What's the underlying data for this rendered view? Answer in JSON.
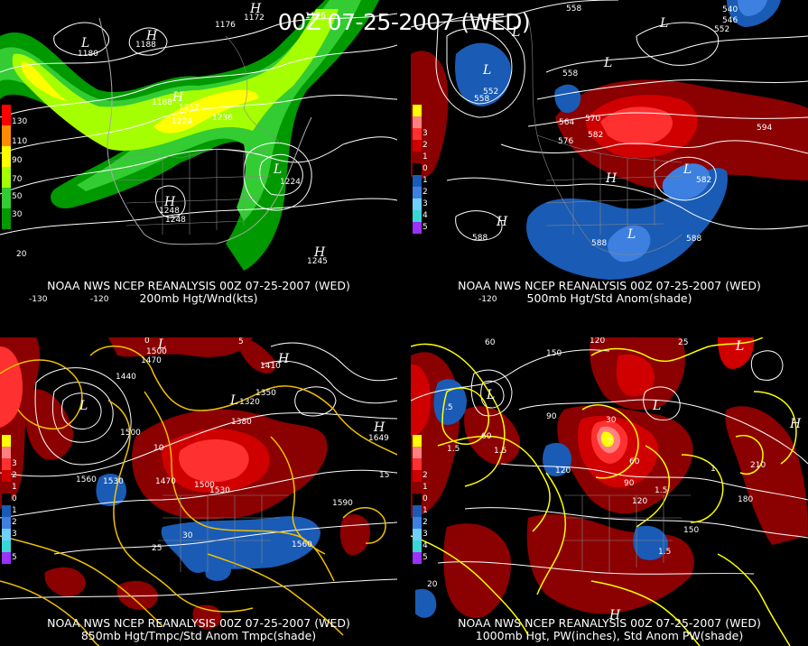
{
  "title": "00Z 07-25-2007 (WED)",
  "panels": [
    {
      "caption_line1": "NOAA NWS NCEP REANALYSIS 00Z 07-25-2007 (WED)",
      "caption_line2": "200mb Hgt/Wnd(kts)",
      "colorbar": [
        {
          "label": "130",
          "color": "#ff0000"
        },
        {
          "label": "110",
          "color": "#ff8c00"
        },
        {
          "label": "90",
          "color": "#ffff00"
        },
        {
          "label": "70",
          "color": "#a6ff00"
        },
        {
          "label": "50",
          "color": "#33cc33"
        },
        {
          "label": "30",
          "color": "#009900"
        }
      ],
      "contour_labels": [
        {
          "text": "1172"
        },
        {
          "text": "1176"
        },
        {
          "text": "1176"
        },
        {
          "text": "1180"
        },
        {
          "text": "1188"
        },
        {
          "text": "1188"
        },
        {
          "text": "1212"
        },
        {
          "text": "1224"
        },
        {
          "text": "1236"
        },
        {
          "text": "1224"
        },
        {
          "text": "1248"
        },
        {
          "text": "1248"
        },
        {
          "text": "1245"
        },
        {
          "text": "20"
        },
        {
          "text": "-130"
        },
        {
          "text": "-120"
        }
      ],
      "centers": [
        {
          "type": "L"
        },
        {
          "type": "H"
        },
        {
          "type": "H"
        },
        {
          "type": "L"
        },
        {
          "type": "H"
        },
        {
          "type": "H"
        },
        {
          "type": "H"
        }
      ]
    },
    {
      "caption_line1": "NOAA NWS NCEP REANALYSIS 00Z 07-25-2007 (WED)",
      "caption_line2": "500mb Hgt/Std Anom(shade)",
      "colorbar": [
        {
          "label": "",
          "color": "#ffff00"
        },
        {
          "label": "",
          "color": "#ff8080"
        },
        {
          "label": "3",
          "color": "#ff3030"
        },
        {
          "label": "2",
          "color": "#d00000"
        },
        {
          "label": "1",
          "color": "#8b0000"
        },
        {
          "label": "0",
          "color": "#000000"
        },
        {
          "label": "1",
          "color": "#1a5bb5"
        },
        {
          "label": "2",
          "color": "#3d80e0"
        },
        {
          "label": "3",
          "color": "#6fd0ff"
        },
        {
          "label": "4",
          "color": "#3ad6d6"
        },
        {
          "label": "5",
          "color": "#9b30ff"
        }
      ],
      "contour_labels": [
        {
          "text": "558"
        },
        {
          "text": "540"
        },
        {
          "text": "546"
        },
        {
          "text": "552"
        },
        {
          "text": "552"
        },
        {
          "text": "558"
        },
        {
          "text": "558"
        },
        {
          "text": "564"
        },
        {
          "text": "570"
        },
        {
          "text": "576"
        },
        {
          "text": "582"
        },
        {
          "text": "582"
        },
        {
          "text": "594"
        },
        {
          "text": "588"
        },
        {
          "text": "588"
        },
        {
          "text": "588"
        },
        {
          "text": "-120"
        }
      ],
      "centers": [
        {
          "type": "L"
        },
        {
          "type": "L"
        },
        {
          "type": "L"
        },
        {
          "type": "L"
        },
        {
          "type": "H"
        },
        {
          "type": "H"
        },
        {
          "type": "L"
        },
        {
          "type": "L"
        }
      ]
    },
    {
      "caption_line1": "NOAA NWS NCEP REANALYSIS 00Z 07-25-2007 (WED)",
      "caption_line2": "850mb Hgt/Tmpc/Std Anom Tmpc(shade)",
      "colorbar": [
        {
          "label": "",
          "color": "#ffff00"
        },
        {
          "label": "",
          "color": "#ff8080"
        },
        {
          "label": "3",
          "color": "#ff3030"
        },
        {
          "label": "2",
          "color": "#d00000"
        },
        {
          "label": "1",
          "color": "#8b0000"
        },
        {
          "label": "0",
          "color": "#000000"
        },
        {
          "label": "1",
          "color": "#1a5bb5"
        },
        {
          "label": "2",
          "color": "#3d80e0"
        },
        {
          "label": "3",
          "color": "#6fd0ff"
        },
        {
          "label": "",
          "color": "#3ad6d6"
        },
        {
          "label": "5",
          "color": "#9b30ff"
        }
      ],
      "contour_labels": [
        {
          "text": "1500"
        },
        {
          "text": "1470"
        },
        {
          "text": "1440"
        },
        {
          "text": "1350"
        },
        {
          "text": "1410"
        },
        {
          "text": "1320"
        },
        {
          "text": "1380"
        },
        {
          "text": "1500"
        },
        {
          "text": "1560"
        },
        {
          "text": "1530"
        },
        {
          "text": "1470"
        },
        {
          "text": "1500"
        },
        {
          "text": "1530"
        },
        {
          "text": "1590"
        },
        {
          "text": "1560"
        },
        {
          "text": "1649"
        },
        {
          "text": "10"
        },
        {
          "text": "15"
        },
        {
          "text": "25"
        },
        {
          "text": "30"
        },
        {
          "text": "5"
        },
        {
          "text": "0"
        }
      ],
      "centers": [
        {
          "type": "L"
        },
        {
          "type": "L"
        },
        {
          "type": "H"
        },
        {
          "type": "H"
        },
        {
          "type": "L"
        }
      ]
    },
    {
      "caption_line1": "NOAA NWS NCEP REANALYSIS 00Z 07-25-2007 (WED)",
      "caption_line2": "1000mb Hgt, PW(inches), Std Anom PW(shade)",
      "colorbar": [
        {
          "label": "",
          "color": "#ffff00"
        },
        {
          "label": "",
          "color": "#ff8080"
        },
        {
          "label": "",
          "color": "#ff3030"
        },
        {
          "label": "2",
          "color": "#d00000"
        },
        {
          "label": "1",
          "color": "#8b0000"
        },
        {
          "label": "0",
          "color": "#000000"
        },
        {
          "label": "1",
          "color": "#1a5bb5"
        },
        {
          "label": "2",
          "color": "#3d80e0"
        },
        {
          "label": "3",
          "color": "#6fd0ff"
        },
        {
          "label": "4",
          "color": "#3ad6d6"
        },
        {
          "label": "5",
          "color": "#9b30ff"
        }
      ],
      "contour_labels": [
        {
          "text": "60"
        },
        {
          "text": "120"
        },
        {
          "text": "150"
        },
        {
          "text": "90"
        },
        {
          "text": "30"
        },
        {
          "text": "60"
        },
        {
          "text": "90"
        },
        {
          "text": "120"
        },
        {
          "text": "210"
        },
        {
          "text": "180"
        },
        {
          "text": "150"
        },
        {
          "text": "120"
        },
        {
          "text": "60"
        },
        {
          "text": "20"
        },
        {
          "text": "1.5"
        },
        {
          "text": "1.5"
        },
        {
          "text": "1.5"
        },
        {
          "text": "1.5"
        },
        {
          "text": ".5"
        },
        {
          "text": "1"
        },
        {
          "text": "25"
        },
        {
          "text": "2"
        }
      ],
      "centers": [
        {
          "type": "L"
        },
        {
          "type": "L"
        },
        {
          "type": "H"
        },
        {
          "type": "L"
        },
        {
          "type": "H"
        }
      ]
    }
  ]
}
